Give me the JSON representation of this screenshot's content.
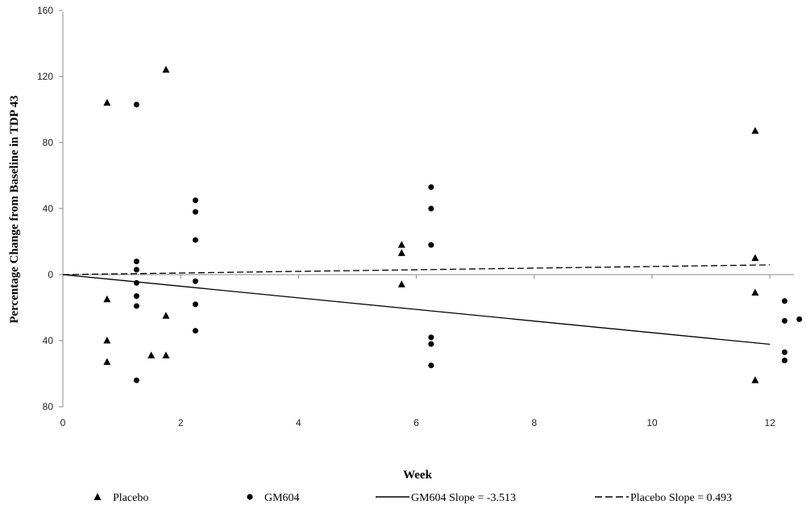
{
  "chart_data": {
    "type": "scatter",
    "xlabel": "Week",
    "ylabel": "Percentage Change from Baseline in TDP 43",
    "xlim": [
      0,
      12.5
    ],
    "ylim": [
      -80,
      160
    ],
    "x_ticks": [
      0,
      2,
      4,
      6,
      8,
      10,
      12
    ],
    "y_ticks": [
      160,
      120,
      80,
      40,
      0,
      -40,
      -80
    ],
    "y_tick_labels": [
      "160",
      "120",
      "80",
      "40",
      "0",
      "40",
      "80"
    ],
    "grid": false,
    "legend_position": "bottom",
    "series": [
      {
        "name": "Placebo",
        "marker": "triangle",
        "points": [
          [
            0.75,
            104
          ],
          [
            0.75,
            -15
          ],
          [
            0.75,
            -40
          ],
          [
            0.75,
            -53
          ],
          [
            1.5,
            -49
          ],
          [
            1.75,
            124
          ],
          [
            1.75,
            -25
          ],
          [
            1.75,
            -49
          ],
          [
            5.75,
            18
          ],
          [
            5.75,
            13
          ],
          [
            5.75,
            -6
          ],
          [
            11.75,
            87
          ],
          [
            11.75,
            10
          ],
          [
            11.75,
            -11
          ],
          [
            11.75,
            -64
          ]
        ]
      },
      {
        "name": "GM604",
        "marker": "circle",
        "points": [
          [
            1.25,
            103
          ],
          [
            1.25,
            8
          ],
          [
            1.25,
            3
          ],
          [
            1.25,
            -5
          ],
          [
            1.25,
            -13
          ],
          [
            1.25,
            -19
          ],
          [
            1.25,
            -64
          ],
          [
            2.25,
            45
          ],
          [
            2.25,
            38
          ],
          [
            2.25,
            21
          ],
          [
            2.25,
            -4
          ],
          [
            2.25,
            -18
          ],
          [
            2.25,
            -34
          ],
          [
            6.25,
            53
          ],
          [
            6.25,
            40
          ],
          [
            6.25,
            18
          ],
          [
            6.25,
            -38
          ],
          [
            6.25,
            -42
          ],
          [
            6.25,
            -55
          ],
          [
            12.25,
            -16
          ],
          [
            12.25,
            -28
          ],
          [
            12.25,
            -47
          ],
          [
            12.25,
            -52
          ],
          [
            12.5,
            -27
          ]
        ]
      },
      {
        "name": "GM604 Slope = -3.513",
        "type": "line",
        "style": "solid",
        "points": [
          [
            0,
            0
          ],
          [
            12,
            -42.2
          ]
        ]
      },
      {
        "name": "Placebo Slope = 0.493",
        "type": "line",
        "style": "dashed",
        "points": [
          [
            0,
            0
          ],
          [
            12,
            5.9
          ]
        ]
      }
    ]
  }
}
